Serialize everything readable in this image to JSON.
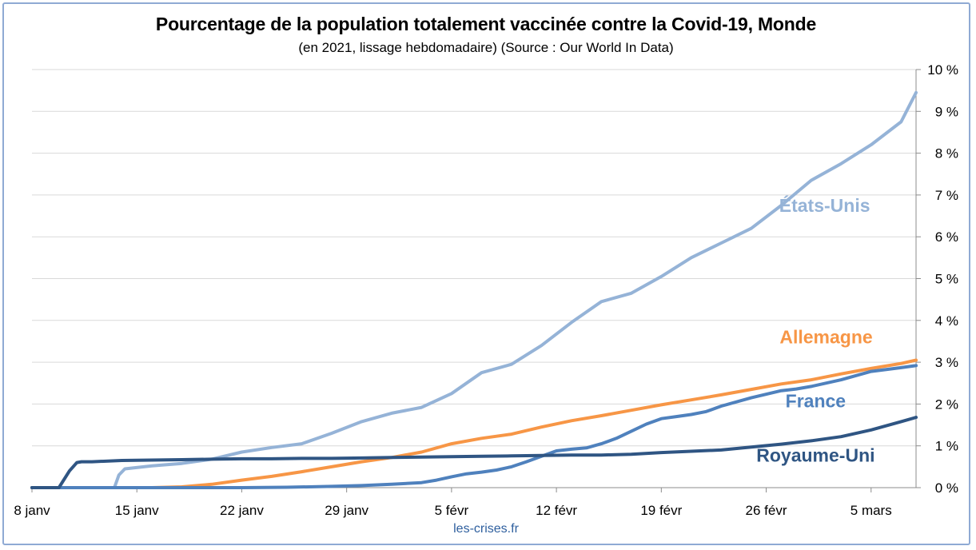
{
  "title": "Pourcentage de la population totalement vaccinée contre la Covid-19, Monde",
  "subtitle": "(en 2021, lissage hebdomadaire) (Source : Our World In Data)",
  "source": "les-crises.fr",
  "chart_data": {
    "type": "line",
    "x_tick_labels": [
      "8 janv",
      "15 janv",
      "22 janv",
      "29 janv",
      "5 févr",
      "12 févr",
      "19 févr",
      "26 févr",
      "5 mars"
    ],
    "x_tick_days": [
      0,
      7,
      14,
      21,
      28,
      35,
      42,
      49,
      56
    ],
    "xlim": [
      0,
      59
    ],
    "ylim": [
      0,
      10
    ],
    "y_ticks": [
      0,
      1,
      2,
      3,
      4,
      5,
      6,
      7,
      8,
      9,
      10
    ],
    "y_tick_labels": [
      "0 %",
      "1 %",
      "2 %",
      "3 %",
      "4 %",
      "5 %",
      "6 %",
      "7 %",
      "8 %",
      "9 %",
      "10 %"
    ],
    "y_axis_side": "right",
    "grid": true,
    "legend": "labels next to lines",
    "series": [
      {
        "name": "États-Unis",
        "color": "#95b3d7",
        "x": [
          0,
          5.5,
          5.8,
          6.2,
          8,
          10,
          12,
          14,
          16,
          18,
          20,
          22,
          24,
          26,
          28,
          30,
          32,
          34,
          36,
          38,
          40,
          42,
          44,
          46,
          48,
          50,
          52,
          54,
          56,
          58,
          59
        ],
        "y": [
          0,
          0,
          0.3,
          0.45,
          0.52,
          0.58,
          0.68,
          0.85,
          0.96,
          1.05,
          1.3,
          1.58,
          1.78,
          1.92,
          2.25,
          2.75,
          2.95,
          3.4,
          3.95,
          4.45,
          4.65,
          5.05,
          5.5,
          5.85,
          6.2,
          6.75,
          7.35,
          7.75,
          8.2,
          8.75,
          9.45
        ]
      },
      {
        "name": "Allemagne",
        "color": "#f79646",
        "x": [
          0,
          8,
          10,
          12,
          14,
          16,
          18,
          20,
          22,
          24,
          26,
          28,
          30,
          32,
          34,
          36,
          38,
          40,
          42,
          44,
          46,
          48,
          50,
          52,
          54,
          56,
          58,
          59
        ],
        "y": [
          0,
          0,
          0.02,
          0.08,
          0.18,
          0.27,
          0.38,
          0.5,
          0.62,
          0.72,
          0.85,
          1.05,
          1.18,
          1.28,
          1.45,
          1.6,
          1.72,
          1.85,
          1.98,
          2.1,
          2.22,
          2.35,
          2.48,
          2.58,
          2.72,
          2.85,
          2.97,
          3.05
        ]
      },
      {
        "name": "France",
        "color": "#4f81bd",
        "x": [
          0,
          14,
          17,
          20,
          22,
          24,
          26,
          27,
          28,
          29,
          30,
          31,
          32,
          33,
          34,
          35,
          36,
          37,
          38,
          39,
          40,
          41,
          42,
          43,
          44,
          45,
          46,
          48,
          50,
          51,
          52,
          54,
          56,
          58,
          59
        ],
        "y": [
          0,
          0,
          0.01,
          0.03,
          0.05,
          0.08,
          0.12,
          0.18,
          0.26,
          0.33,
          0.37,
          0.42,
          0.5,
          0.62,
          0.75,
          0.88,
          0.92,
          0.95,
          1.05,
          1.18,
          1.35,
          1.52,
          1.65,
          1.7,
          1.75,
          1.82,
          1.95,
          2.15,
          2.32,
          2.36,
          2.42,
          2.58,
          2.78,
          2.87,
          2.92
        ]
      },
      {
        "name": "Royaume-Uni",
        "color": "#2f5583",
        "x": [
          0,
          1.8,
          2.5,
          3.0,
          3.3,
          4,
          6,
          8,
          10,
          12,
          14,
          16,
          18,
          20,
          22,
          24,
          26,
          28,
          30,
          32,
          34,
          36,
          38,
          40,
          42,
          44,
          46,
          48,
          50,
          52,
          54,
          56,
          58,
          59
        ],
        "y": [
          0,
          0,
          0.4,
          0.6,
          0.62,
          0.62,
          0.65,
          0.66,
          0.67,
          0.68,
          0.69,
          0.69,
          0.7,
          0.7,
          0.71,
          0.72,
          0.73,
          0.74,
          0.75,
          0.76,
          0.77,
          0.78,
          0.78,
          0.8,
          0.84,
          0.87,
          0.9,
          0.97,
          1.04,
          1.12,
          1.22,
          1.38,
          1.58,
          1.68
        ]
      }
    ],
    "annotations": [
      {
        "text": "États-Unis",
        "color": "#95b3d7",
        "anchor_x": 52.9,
        "anchor_y": 6.6
      },
      {
        "text": "Allemagne",
        "color": "#f79646",
        "anchor_x": 53.0,
        "anchor_y": 3.45
      },
      {
        "text": "France",
        "color": "#4f81bd",
        "anchor_x": 52.3,
        "anchor_y": 1.92
      },
      {
        "text": "Royaume-Uni",
        "color": "#2f5583",
        "anchor_x": 52.3,
        "anchor_y": 0.62
      }
    ]
  }
}
